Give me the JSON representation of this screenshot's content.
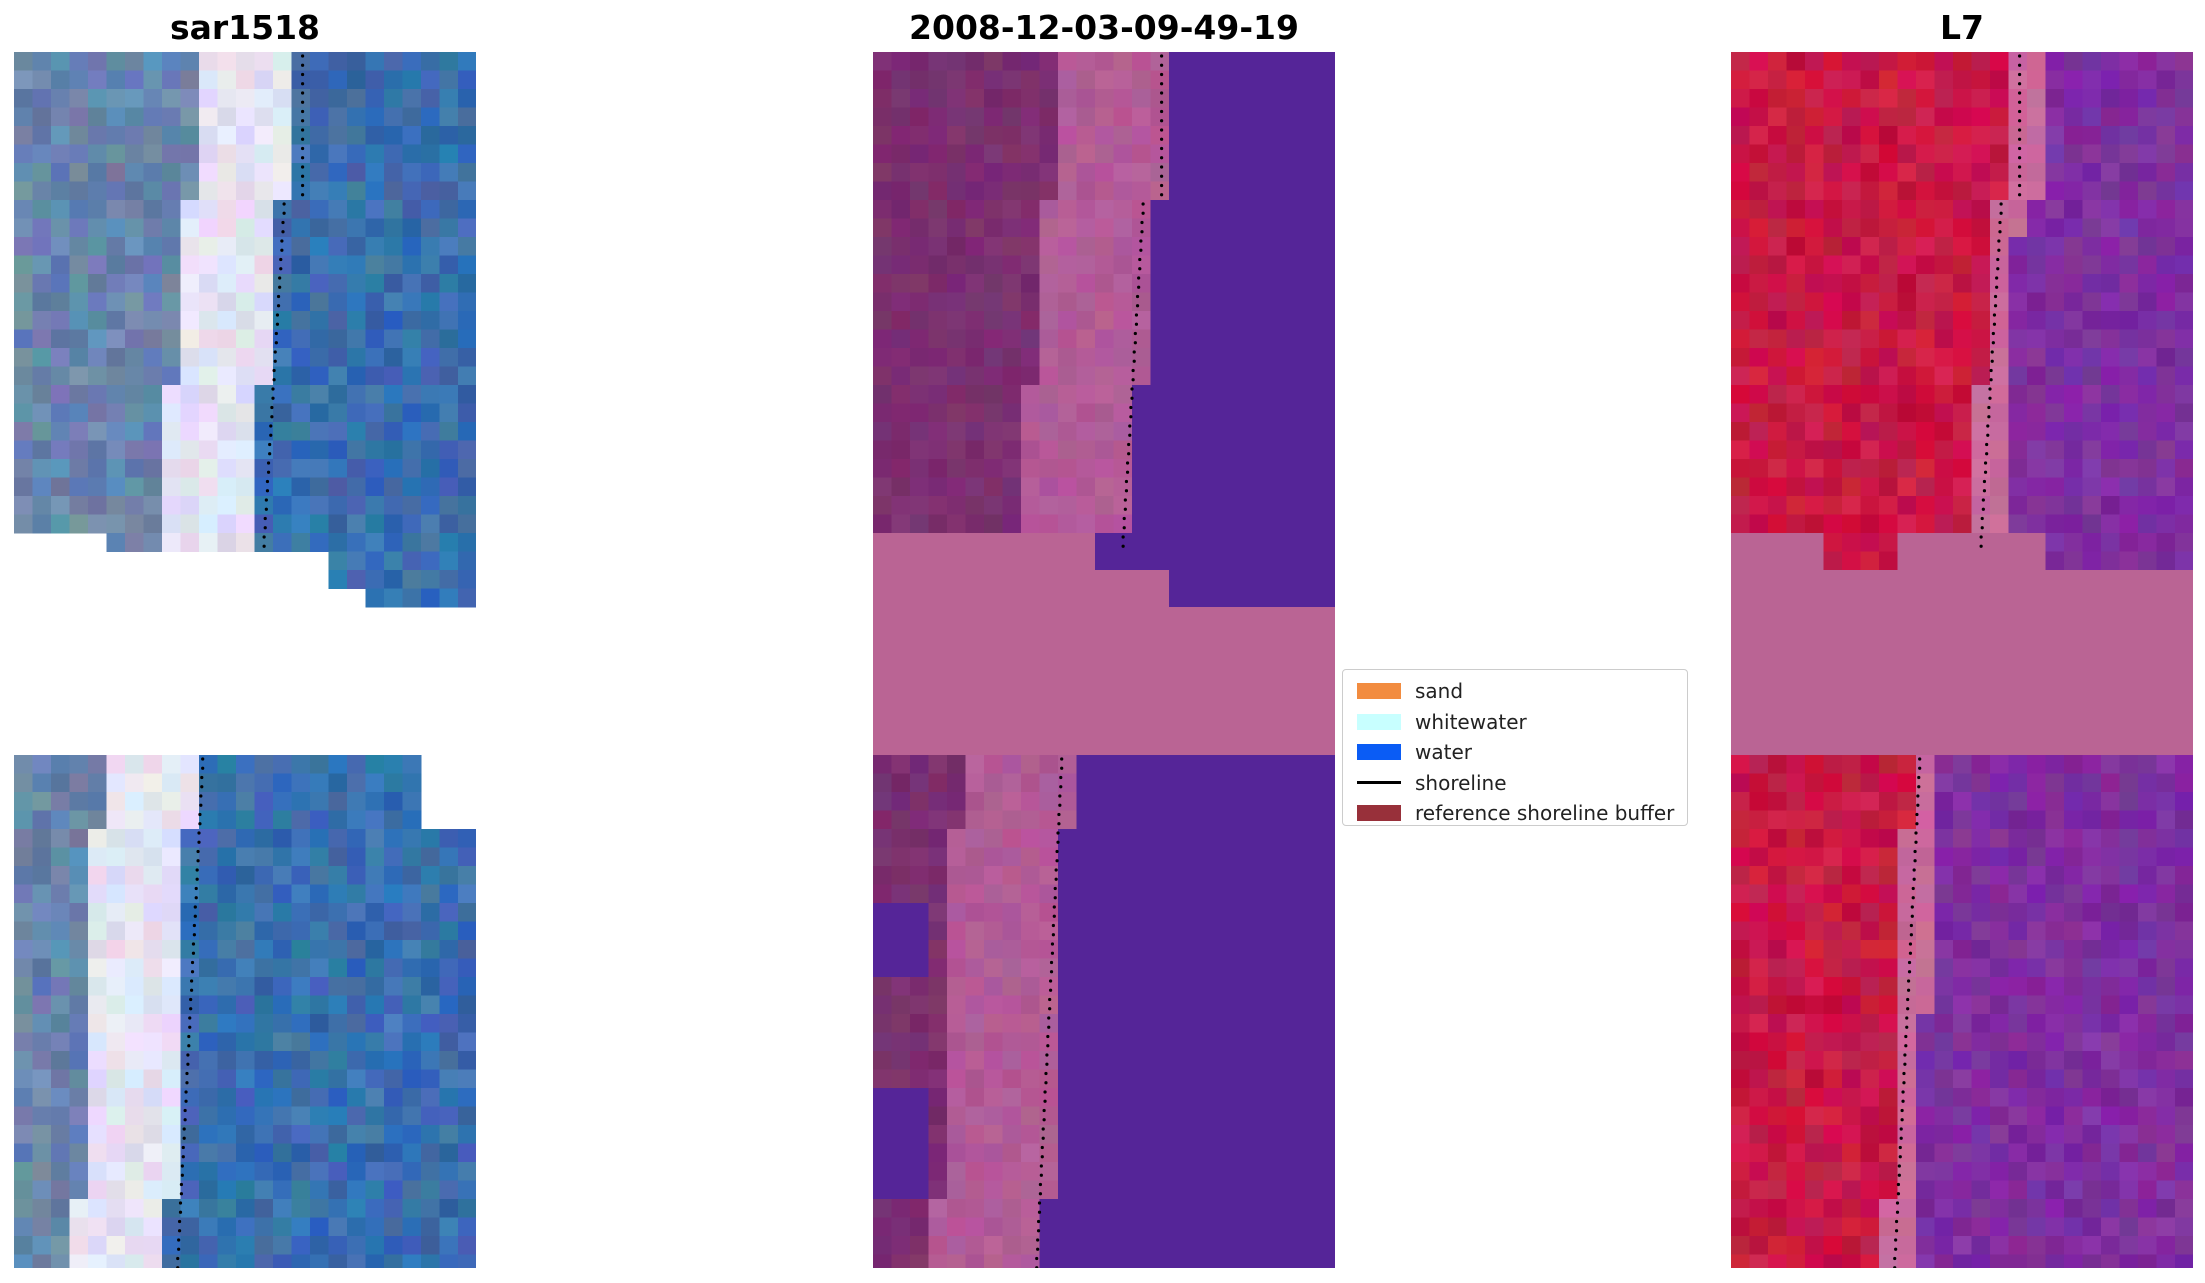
{
  "panels": [
    {
      "title": "sar1518",
      "kind": "rgb"
    },
    {
      "title": "2008-12-03-09-49-19",
      "kind": "classified"
    },
    {
      "title": "L7",
      "kind": "index"
    }
  ],
  "legend": {
    "items": [
      {
        "label": "sand",
        "color": "#f28c40",
        "type": "patch"
      },
      {
        "label": "whitewater",
        "color": "#c8ffff",
        "type": "patch"
      },
      {
        "label": "water",
        "color": "#0a5cf5",
        "type": "patch"
      },
      {
        "label": "shoreline",
        "color": "#000000",
        "type": "line"
      },
      {
        "label": "reference shoreline buffer",
        "color": "#98303a",
        "type": "patch"
      }
    ]
  },
  "colors": {
    "rgb_land": "#6a86ad",
    "rgb_white": "#e4e2f4",
    "rgb_water": "#3a6fae",
    "classified_land": "#7b2f6f",
    "classified_beach": "#b25b97",
    "classified_water": "#552598",
    "classified_buffer": "#ba6494",
    "index_land": "#c81845",
    "index_beach": "#c96a9a",
    "index_water": "#7f2ea0",
    "index_buffer": "#ba6494"
  }
}
